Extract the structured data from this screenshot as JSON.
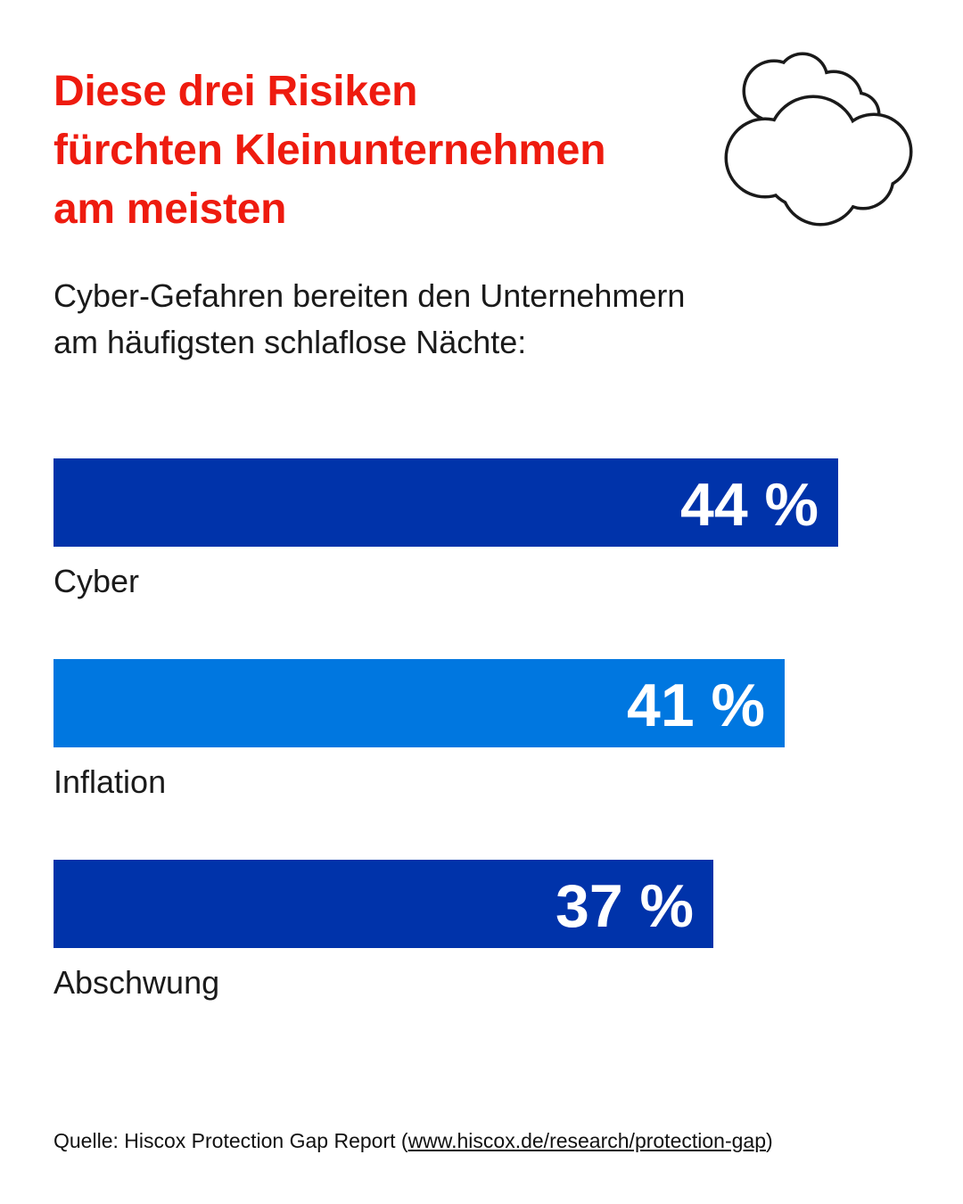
{
  "title": [
    "Diese drei Risiken",
    "fürchten Kleinunternehmen",
    "am meisten"
  ],
  "subtitle": [
    "Cyber-Gefahren bereiten den Unternehmern",
    "am häufigsten schlaflose Nächte:"
  ],
  "icon": "cloud-icon",
  "colors": {
    "title": "#ee1b0f",
    "bar_dark": "#0033aa",
    "bar_light": "#0077e0"
  },
  "chart_data": {
    "type": "bar",
    "orientation": "horizontal",
    "categories": [
      "Cyber",
      "Inflation",
      "Abschwung"
    ],
    "values": [
      44,
      41,
      37
    ],
    "value_labels": [
      "44 %",
      "41 %",
      "37 %"
    ],
    "unit": "%",
    "bar_colors": [
      "#0033aa",
      "#0077e0",
      "#0033aa"
    ],
    "grid": false
  },
  "source": {
    "prefix": "Quelle: Hiscox Protection Gap Report (",
    "link": "www.hiscox.de/research/protection-gap",
    "suffix": ")"
  }
}
